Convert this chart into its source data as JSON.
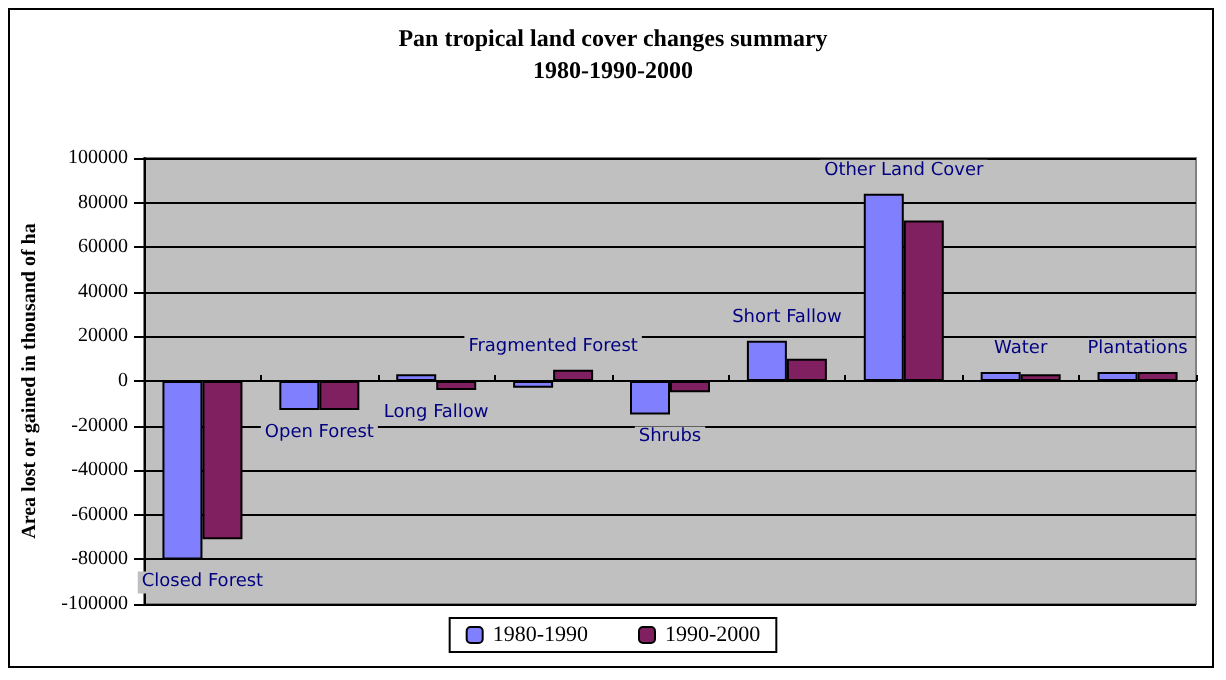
{
  "chart_data": {
    "type": "bar",
    "title": "Pan tropical land cover changes summary",
    "subtitle": "1980-1990-2000",
    "ylabel": "Area lost or gained in thousand of ha",
    "categories": [
      "Closed Forest",
      "Open Forest",
      "Long Fallow",
      "Fragmented Forest",
      "Shrubs",
      "Short Fallow",
      "Other Land Cover",
      "Water",
      "Plantations"
    ],
    "series": [
      {
        "name": "1980-1990",
        "color": "#8080ff",
        "values": [
          -80000,
          -13000,
          3000,
          -3000,
          -15000,
          18000,
          84000,
          4000,
          4000
        ]
      },
      {
        "name": "1990-2000",
        "color": "#802060",
        "values": [
          -71000,
          -13000,
          -4000,
          5000,
          -5000,
          10000,
          72000,
          3000,
          4000
        ]
      }
    ],
    "ylim": [
      -100000,
      100000
    ],
    "yticks": [
      -100000,
      -80000,
      -60000,
      -40000,
      -20000,
      0,
      20000,
      40000,
      60000,
      80000,
      100000
    ],
    "grid": "y",
    "legend": "bottom"
  }
}
